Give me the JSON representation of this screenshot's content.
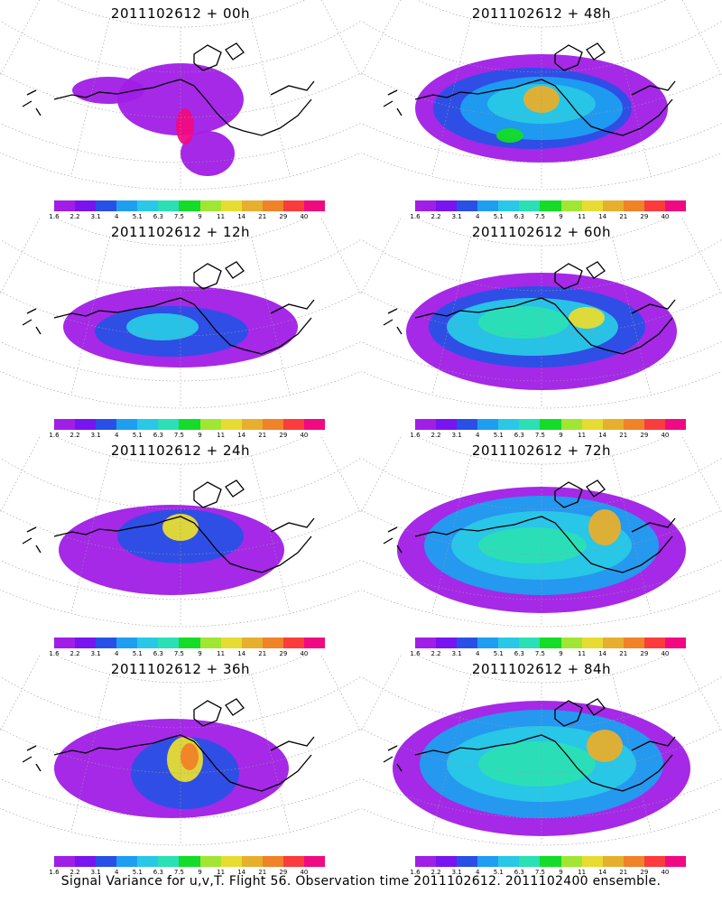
{
  "caption": "Signal Variance for u,v,T. Flight 56. Observation time 2011102612. 2011102400 ensemble.",
  "colorbar": {
    "ticks": [
      "1.6",
      "2.2",
      "3.1",
      "4",
      "5.1",
      "6.3",
      "7.5",
      "9",
      "11",
      "14",
      "21",
      "29",
      "40"
    ],
    "colors": [
      "#a01ee6",
      "#7814f0",
      "#2850e6",
      "#1e9ef0",
      "#28c8e6",
      "#2ae0b4",
      "#14dc28",
      "#a0e632",
      "#e6dc32",
      "#e6af2d",
      "#f08228",
      "#fa3c3c",
      "#f00a82"
    ]
  },
  "panels": [
    {
      "title": "2011102612 + 00h",
      "level": 0
    },
    {
      "title": "2011102612 + 48h",
      "level": 4
    },
    {
      "title": "2011102612 + 12h",
      "level": 1
    },
    {
      "title": "2011102612 + 60h",
      "level": 5
    },
    {
      "title": "2011102612 + 24h",
      "level": 2
    },
    {
      "title": "2011102612 + 72h",
      "level": 6
    },
    {
      "title": "2011102612 + 36h",
      "level": 3
    },
    {
      "title": "2011102612 + 84h",
      "level": 7
    }
  ]
}
